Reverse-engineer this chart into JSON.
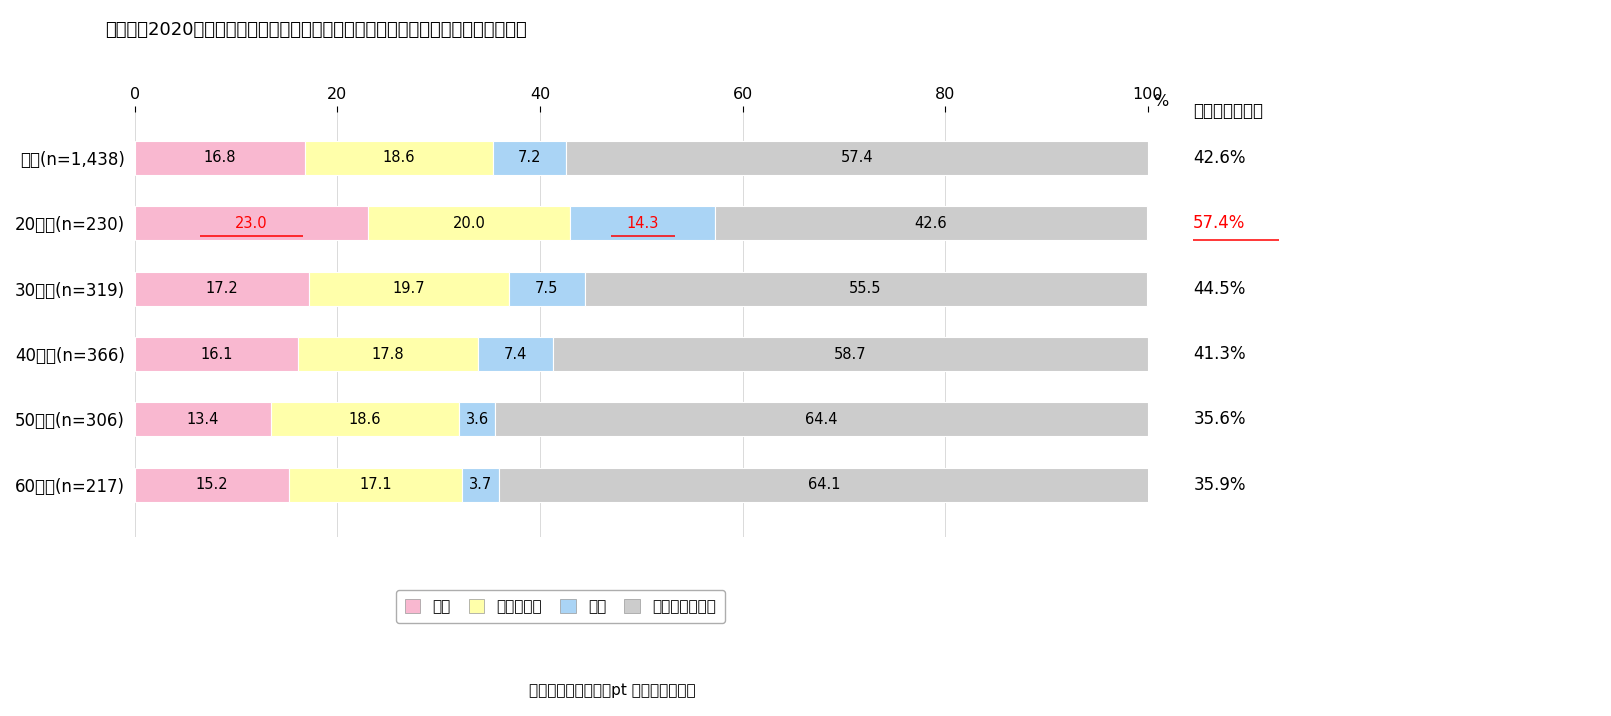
{
  "title": "図表３　2020年１月頃と比べた９月末の就業者の在宅勤務などのテレワークの増減",
  "note": "（注）　全体＋５％pt 以上は赤字下線",
  "categories": [
    "全体(n=1,438)",
    "20歳代(n=230)",
    "30歳代(n=319)",
    "40歳代(n=366)",
    "50歳代(n=306)",
    "60歳代(n=217)"
  ],
  "segments": [
    "増加",
    "変わらない",
    "減少",
    "利用していない"
  ],
  "colors": [
    "#f9b8d0",
    "#ffffaa",
    "#aad4f5",
    "#cccccc"
  ],
  "data": [
    [
      16.8,
      18.6,
      7.2,
      57.4
    ],
    [
      23.0,
      20.0,
      14.3,
      42.6
    ],
    [
      17.2,
      19.7,
      7.5,
      55.5
    ],
    [
      16.1,
      17.8,
      7.4,
      58.7
    ],
    [
      13.4,
      18.6,
      3.6,
      64.4
    ],
    [
      15.2,
      17.1,
      3.7,
      64.1
    ]
  ],
  "right_labels_header": "在宅勤務利用者",
  "right_labels": [
    "42.6%",
    "57.4%",
    "44.5%",
    "41.3%",
    "35.6%",
    "35.9%"
  ],
  "right_label_red": [
    false,
    true,
    false,
    false,
    false,
    false
  ],
  "right_label_underline": [
    false,
    true,
    false,
    false,
    false,
    false
  ],
  "xlim": [
    0,
    100
  ],
  "xlabel_ticks": [
    0,
    20,
    40,
    60,
    80,
    100
  ],
  "bar_height": 0.52,
  "figsize": [
    16.11,
    7.16
  ],
  "dpi": 100,
  "background_color": "#ffffff",
  "text_color": "#000000",
  "label_fontsize": 12,
  "tick_fontsize": 11.5,
  "title_fontsize": 13,
  "legend_fontsize": 11,
  "note_fontsize": 11,
  "segment_text_fontsize": 10.5,
  "overall_increase": 16.8,
  "overall_decrease": 7.2,
  "threshold_diff": 5.0
}
